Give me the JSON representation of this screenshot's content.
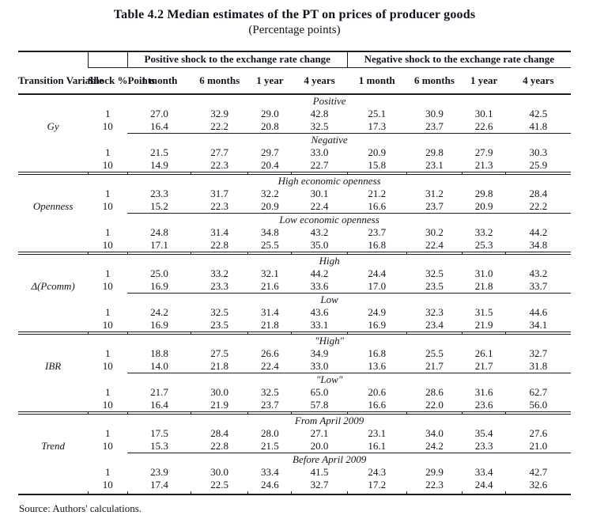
{
  "title": "Table 4.2 Median estimates of the PT on prices of producer goods",
  "subtitle": "(Percentage points)",
  "source_note": "Source: Authors' calculations.",
  "colors": {
    "text": "#14141f",
    "border": "#1c1c28",
    "background": "#ffffff"
  },
  "table": {
    "row_headers": {
      "variable": "Transition Variable",
      "shock": "Shock %Points"
    },
    "group_headers": [
      "Positive shock to the exchange rate change",
      "Negative shock to the exchange rate change"
    ],
    "period_headers": [
      "1 month",
      "6 months",
      "1 year",
      "4 years"
    ],
    "sections": [
      {
        "variable": "Gy",
        "subsections": [
          {
            "label": "Positive",
            "rows": [
              {
                "shock": "1",
                "values": [
                  "27.0",
                  "32.9",
                  "29.0",
                  "42.8",
                  "25.1",
                  "30.9",
                  "30.1",
                  "42.5"
                ]
              },
              {
                "shock": "10",
                "values": [
                  "16.4",
                  "22.2",
                  "20.8",
                  "32.5",
                  "17.3",
                  "23.7",
                  "22.6",
                  "41.8"
                ]
              }
            ]
          },
          {
            "label": "Negative",
            "rows": [
              {
                "shock": "1",
                "values": [
                  "21.5",
                  "27.7",
                  "29.7",
                  "33.0",
                  "20.9",
                  "29.8",
                  "27.9",
                  "30.3"
                ]
              },
              {
                "shock": "10",
                "values": [
                  "14.9",
                  "22.3",
                  "20.4",
                  "22.7",
                  "15.8",
                  "23.1",
                  "21.3",
                  "25.9"
                ]
              }
            ]
          }
        ]
      },
      {
        "variable": "Openness",
        "subsections": [
          {
            "label": "High economic openness",
            "rows": [
              {
                "shock": "1",
                "values": [
                  "23.3",
                  "31.7",
                  "32.2",
                  "30.1",
                  "21.2",
                  "31.2",
                  "29.8",
                  "28.4"
                ]
              },
              {
                "shock": "10",
                "values": [
                  "15.2",
                  "22.3",
                  "20.9",
                  "22.4",
                  "16.6",
                  "23.7",
                  "20.9",
                  "22.2"
                ]
              }
            ]
          },
          {
            "label": "Low economic openness",
            "rows": [
              {
                "shock": "1",
                "values": [
                  "24.8",
                  "31.4",
                  "34.8",
                  "43.2",
                  "23.7",
                  "30.2",
                  "33.2",
                  "44.2"
                ]
              },
              {
                "shock": "10",
                "values": [
                  "17.1",
                  "22.8",
                  "25.5",
                  "35.0",
                  "16.8",
                  "22.4",
                  "25.3",
                  "34.8"
                ]
              }
            ]
          }
        ]
      },
      {
        "variable": "Δ(Pcomm)",
        "subsections": [
          {
            "label": "High",
            "rows": [
              {
                "shock": "1",
                "values": [
                  "25.0",
                  "33.2",
                  "32.1",
                  "44.2",
                  "24.4",
                  "32.5",
                  "31.0",
                  "43.2"
                ]
              },
              {
                "shock": "10",
                "values": [
                  "16.9",
                  "23.3",
                  "21.6",
                  "33.6",
                  "17.0",
                  "23.5",
                  "21.8",
                  "33.7"
                ]
              }
            ]
          },
          {
            "label": "Low",
            "rows": [
              {
                "shock": "1",
                "values": [
                  "24.2",
                  "32.5",
                  "31.4",
                  "43.6",
                  "24.9",
                  "32.3",
                  "31.5",
                  "44.6"
                ]
              },
              {
                "shock": "10",
                "values": [
                  "16.9",
                  "23.5",
                  "21.8",
                  "33.1",
                  "16.9",
                  "23.4",
                  "21.9",
                  "34.1"
                ]
              }
            ]
          }
        ]
      },
      {
        "variable": "IBR",
        "subsections": [
          {
            "label": "\"High\"",
            "rows": [
              {
                "shock": "1",
                "values": [
                  "18.8",
                  "27.5",
                  "26.6",
                  "34.9",
                  "16.8",
                  "25.5",
                  "26.1",
                  "32.7"
                ]
              },
              {
                "shock": "10",
                "values": [
                  "14.0",
                  "21.8",
                  "22.4",
                  "33.0",
                  "13.6",
                  "21.7",
                  "21.7",
                  "31.8"
                ]
              }
            ]
          },
          {
            "label": "\"Low\"",
            "rows": [
              {
                "shock": "1",
                "values": [
                  "21.7",
                  "30.0",
                  "32.5",
                  "65.0",
                  "20.6",
                  "28.6",
                  "31.6",
                  "62.7"
                ]
              },
              {
                "shock": "10",
                "values": [
                  "16.4",
                  "21.9",
                  "23.7",
                  "57.8",
                  "16.6",
                  "22.0",
                  "23.6",
                  "56.0"
                ]
              }
            ]
          }
        ]
      },
      {
        "variable": "Trend",
        "subsections": [
          {
            "label": "From April 2009",
            "rows": [
              {
                "shock": "1",
                "values": [
                  "17.5",
                  "28.4",
                  "28.0",
                  "27.1",
                  "23.1",
                  "34.0",
                  "35.4",
                  "27.6"
                ]
              },
              {
                "shock": "10",
                "values": [
                  "15.3",
                  "22.8",
                  "21.5",
                  "20.0",
                  "16.1",
                  "24.2",
                  "23.3",
                  "21.0"
                ]
              }
            ]
          },
          {
            "label": "Before April 2009",
            "rows": [
              {
                "shock": "1",
                "values": [
                  "23.9",
                  "30.0",
                  "33.4",
                  "41.5",
                  "24.3",
                  "29.9",
                  "33.4",
                  "42.7"
                ]
              },
              {
                "shock": "10",
                "values": [
                  "17.4",
                  "22.5",
                  "24.6",
                  "32.7",
                  "17.2",
                  "22.3",
                  "24.4",
                  "32.6"
                ]
              }
            ]
          }
        ]
      }
    ]
  }
}
